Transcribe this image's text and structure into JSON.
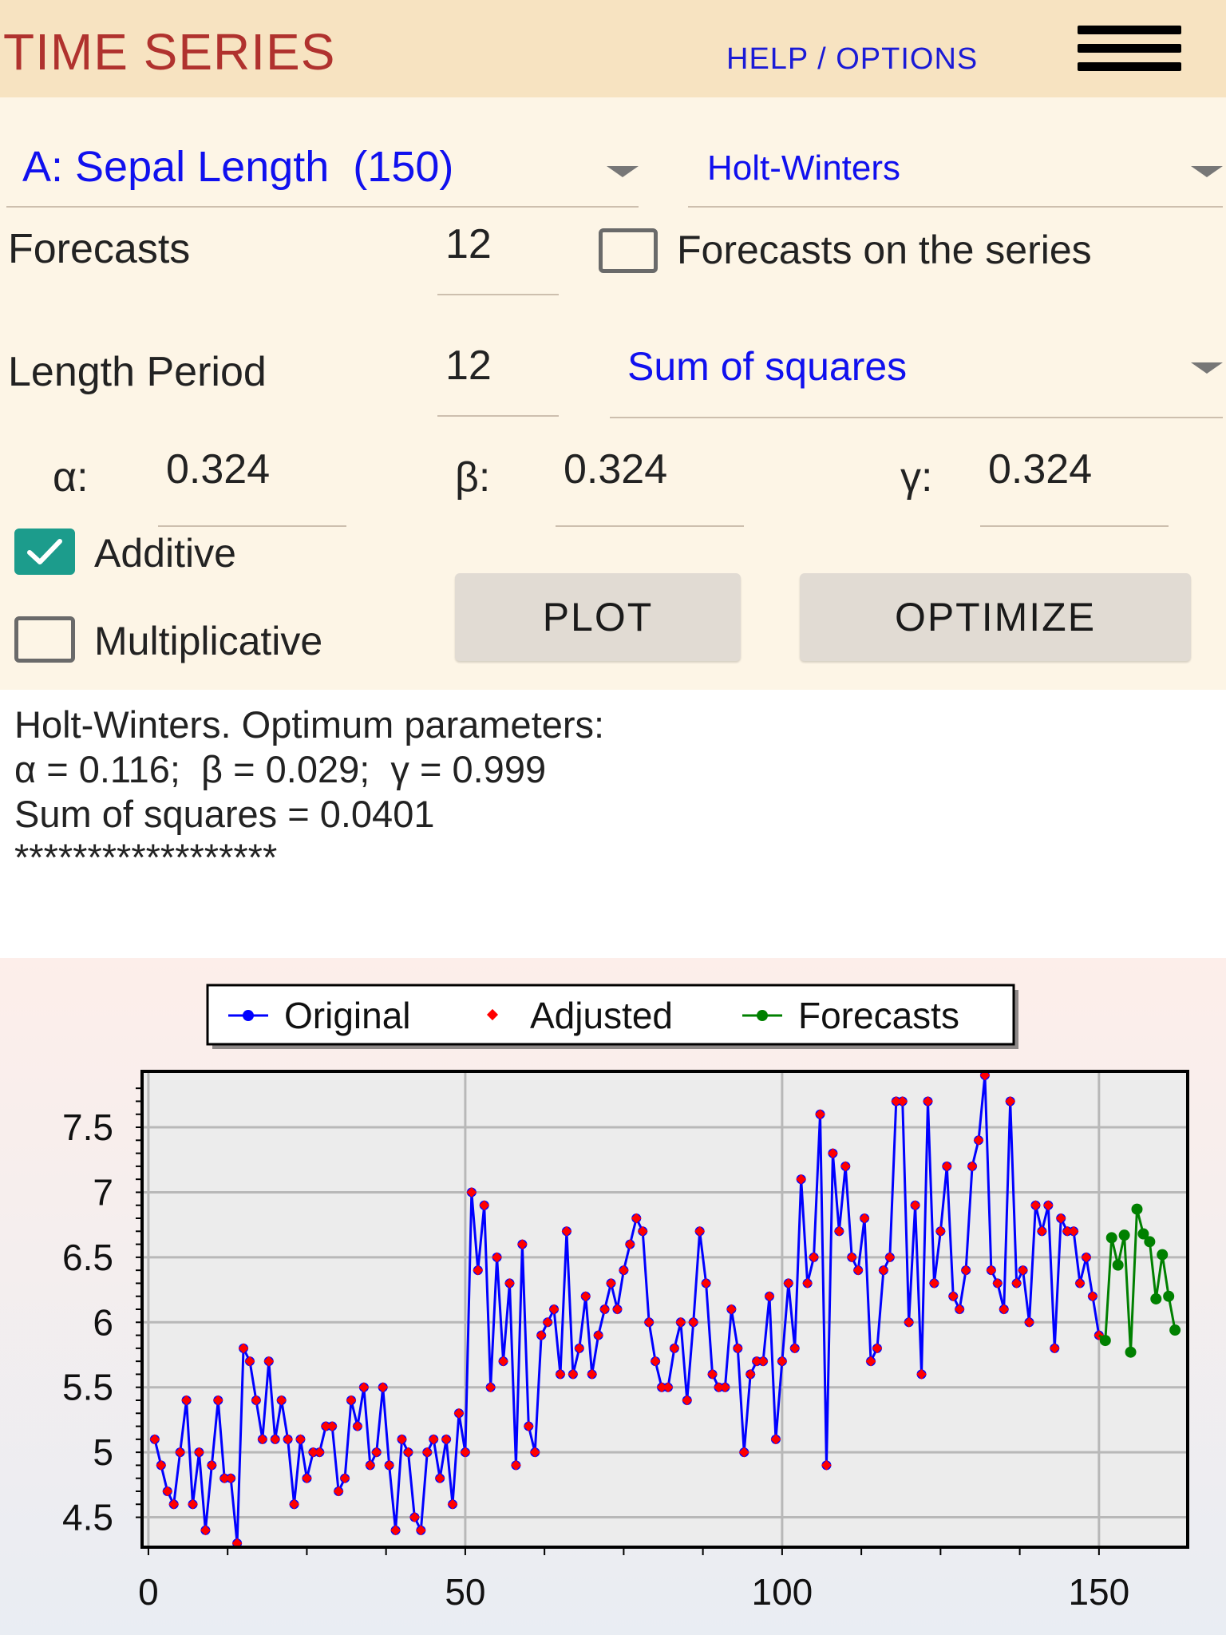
{
  "header": {
    "title": "TIME SERIES",
    "help_link": "HELP / OPTIONS",
    "menu_icon": "hamburger-menu-icon"
  },
  "controls": {
    "series_select": "A: Sepal Length  (150)",
    "method_select": "Holt-Winters",
    "forecasts_label": "Forecasts",
    "forecasts_value": "12",
    "forecasts_on_series_label": "Forecasts on the series",
    "forecasts_on_series_checked": false,
    "length_period_label": "Length Period",
    "length_period_value": "12",
    "criterion_select": "Sum of squares",
    "alpha_label": "α:",
    "alpha_value": "0.324",
    "beta_label": "β:",
    "beta_value": "0.324",
    "gamma_label": "γ:",
    "gamma_value": "0.324",
    "additive_label": "Additive",
    "additive_checked": true,
    "multiplicative_label": "Multiplicative",
    "multiplicative_checked": false,
    "plot_button": "PLOT",
    "optimize_button": "OPTIMIZE"
  },
  "results": {
    "line1": "Holt-Winters. Optimum parameters:",
    "line2": "α = 0.116;  β = 0.029;  γ = 0.999",
    "line3": "Sum of squares = 0.0401",
    "line4": "******************"
  },
  "chart_data": {
    "type": "line",
    "title": "",
    "xlabel": "",
    "ylabel": "",
    "xlim": [
      -1,
      164
    ],
    "ylim": [
      4.27,
      7.93
    ],
    "x_ticks": [
      0,
      50,
      100,
      150
    ],
    "y_ticks": [
      4.5,
      5,
      5.5,
      6,
      6.5,
      7,
      7.5
    ],
    "y_tick_labels": [
      "4.5",
      "5",
      "5.5",
      "6",
      "6.5",
      "7",
      "7.5"
    ],
    "grid": true,
    "legend": {
      "position": "top",
      "entries": [
        "Original",
        "Adjusted",
        "Forecasts"
      ]
    },
    "colors": {
      "original": "#0000ff",
      "adjusted": "#ff0000",
      "forecasts": "#008000"
    },
    "series": [
      {
        "name": "Original",
        "values": [
          5.1,
          4.9,
          4.7,
          4.6,
          5.0,
          5.4,
          4.6,
          5.0,
          4.4,
          4.9,
          5.4,
          4.8,
          4.8,
          4.3,
          5.8,
          5.7,
          5.4,
          5.1,
          5.7,
          5.1,
          5.4,
          5.1,
          4.6,
          5.1,
          4.8,
          5.0,
          5.0,
          5.2,
          5.2,
          4.7,
          4.8,
          5.4,
          5.2,
          5.5,
          4.9,
          5.0,
          5.5,
          4.9,
          4.4,
          5.1,
          5.0,
          4.5,
          4.4,
          5.0,
          5.1,
          4.8,
          5.1,
          4.6,
          5.3,
          5.0,
          7.0,
          6.4,
          6.9,
          5.5,
          6.5,
          5.7,
          6.3,
          4.9,
          6.6,
          5.2,
          5.0,
          5.9,
          6.0,
          6.1,
          5.6,
          6.7,
          5.6,
          5.8,
          6.2,
          5.6,
          5.9,
          6.1,
          6.3,
          6.1,
          6.4,
          6.6,
          6.8,
          6.7,
          6.0,
          5.7,
          5.5,
          5.5,
          5.8,
          6.0,
          5.4,
          6.0,
          6.7,
          6.3,
          5.6,
          5.5,
          5.5,
          6.1,
          5.8,
          5.0,
          5.6,
          5.7,
          5.7,
          6.2,
          5.1,
          5.7,
          6.3,
          5.8,
          7.1,
          6.3,
          6.5,
          7.6,
          4.9,
          7.3,
          6.7,
          7.2,
          6.5,
          6.4,
          6.8,
          5.7,
          5.8,
          6.4,
          6.5,
          7.7,
          7.7,
          6.0,
          6.9,
          5.6,
          7.7,
          6.3,
          6.7,
          7.2,
          6.2,
          6.1,
          6.4,
          7.2,
          7.4,
          7.9,
          6.4,
          6.3,
          6.1,
          7.7,
          6.3,
          6.4,
          6.0,
          6.9,
          6.7,
          6.9,
          5.8,
          6.8,
          6.7,
          6.7,
          6.3,
          6.5,
          6.2,
          5.9
        ]
      },
      {
        "name": "Adjusted",
        "values": [
          5.1,
          4.9,
          4.7,
          4.6,
          5.0,
          5.4,
          4.6,
          5.0,
          4.4,
          4.9,
          5.4,
          4.8,
          4.8,
          4.3,
          5.8,
          5.7,
          5.4,
          5.1,
          5.7,
          5.1,
          5.4,
          5.1,
          4.6,
          5.1,
          4.8,
          5.0,
          5.0,
          5.2,
          5.2,
          4.7,
          4.8,
          5.4,
          5.2,
          5.5,
          4.9,
          5.0,
          5.5,
          4.9,
          4.4,
          5.1,
          5.0,
          4.5,
          4.4,
          5.0,
          5.1,
          4.8,
          5.1,
          4.6,
          5.3,
          5.0,
          7.0,
          6.4,
          6.9,
          5.5,
          6.5,
          5.7,
          6.3,
          4.9,
          6.6,
          5.2,
          5.0,
          5.9,
          6.0,
          6.1,
          5.6,
          6.7,
          5.6,
          5.8,
          6.2,
          5.6,
          5.9,
          6.1,
          6.3,
          6.1,
          6.4,
          6.6,
          6.8,
          6.7,
          6.0,
          5.7,
          5.5,
          5.5,
          5.8,
          6.0,
          5.4,
          6.0,
          6.7,
          6.3,
          5.6,
          5.5,
          5.5,
          6.1,
          5.8,
          5.0,
          5.6,
          5.7,
          5.7,
          6.2,
          5.1,
          5.7,
          6.3,
          5.8,
          7.1,
          6.3,
          6.5,
          7.6,
          4.9,
          7.3,
          6.7,
          7.2,
          6.5,
          6.4,
          6.8,
          5.7,
          5.8,
          6.4,
          6.5,
          7.7,
          7.7,
          6.0,
          6.9,
          5.6,
          7.7,
          6.3,
          6.7,
          7.2,
          6.2,
          6.1,
          6.4,
          7.2,
          7.4,
          7.9,
          6.4,
          6.3,
          6.1,
          7.7,
          6.3,
          6.4,
          6.0,
          6.9,
          6.7,
          6.9,
          5.8,
          6.8,
          6.7,
          6.7,
          6.3,
          6.5,
          6.2,
          5.9
        ]
      },
      {
        "name": "Forecasts",
        "x_start": 151,
        "values": [
          5.86,
          6.65,
          6.44,
          6.67,
          5.77,
          6.87,
          6.68,
          6.62,
          6.18,
          6.52,
          6.2,
          5.94
        ]
      }
    ]
  }
}
